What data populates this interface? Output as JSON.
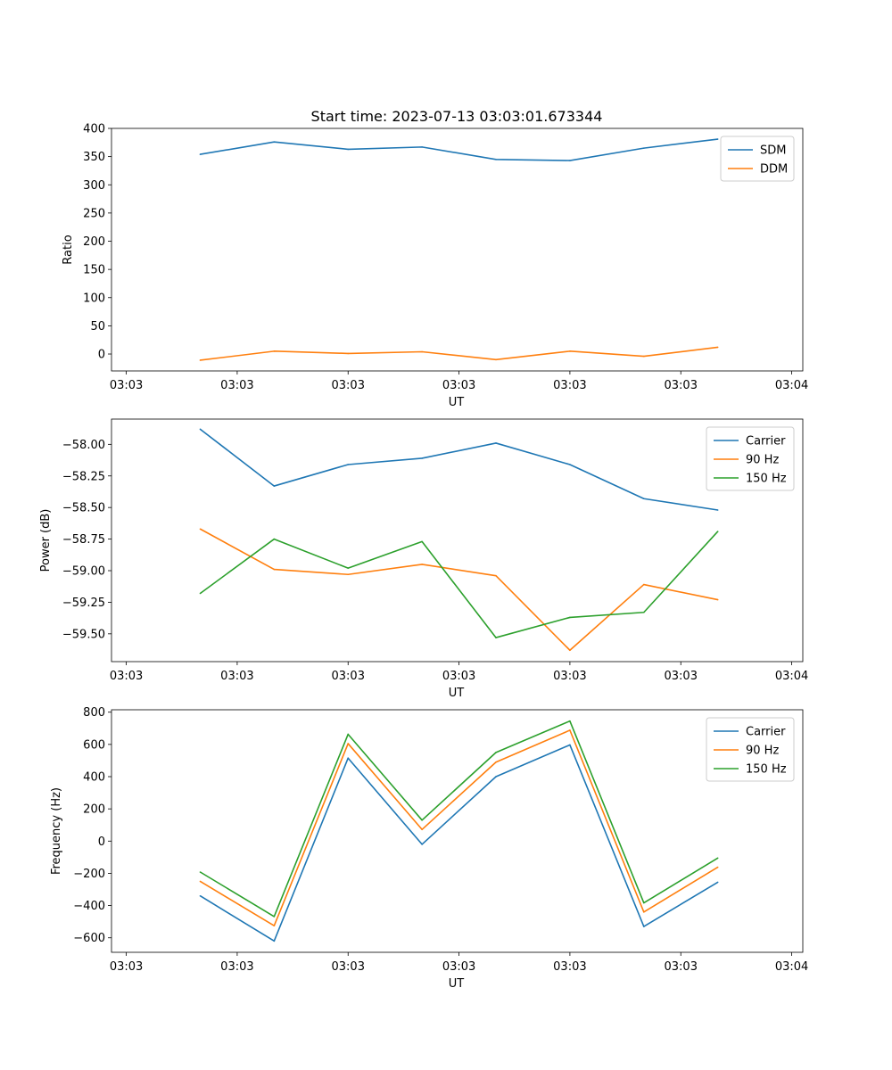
{
  "figure": {
    "title": "Start time: 2023-07-13 03:03:01.673344"
  },
  "chart_data": [
    {
      "type": "line",
      "title": "Start time: 2023-07-13 03:03:01.673344",
      "xlabel": "UT",
      "ylabel": "Ratio",
      "x": [
        1,
        2,
        3,
        4,
        5,
        6,
        7,
        8
      ],
      "xlim": [
        -0.2,
        9.15
      ],
      "xticks": [
        {
          "pos": 0,
          "label": "03:03"
        },
        {
          "pos": 1.5,
          "label": "03:03"
        },
        {
          "pos": 3,
          "label": "03:03"
        },
        {
          "pos": 4.5,
          "label": "03:03"
        },
        {
          "pos": 6,
          "label": "03:03"
        },
        {
          "pos": 7.5,
          "label": "03:03"
        },
        {
          "pos": 9,
          "label": "03:04"
        }
      ],
      "ylim": [
        -30,
        400
      ],
      "yticks": [
        {
          "pos": 0,
          "label": "0"
        },
        {
          "pos": 50,
          "label": "50"
        },
        {
          "pos": 100,
          "label": "100"
        },
        {
          "pos": 150,
          "label": "150"
        },
        {
          "pos": 200,
          "label": "200"
        },
        {
          "pos": 250,
          "label": "250"
        },
        {
          "pos": 300,
          "label": "300"
        },
        {
          "pos": 350,
          "label": "350"
        },
        {
          "pos": 400,
          "label": "400"
        }
      ],
      "legend": "top-right",
      "series": [
        {
          "name": "SDM",
          "color": "#1f77b4",
          "values": [
            354,
            376,
            363,
            367,
            345,
            343,
            365,
            381
          ]
        },
        {
          "name": "DDM",
          "color": "#ff7f0e",
          "values": [
            -11,
            5,
            1,
            4,
            -10,
            5,
            -4,
            12
          ]
        }
      ]
    },
    {
      "type": "line",
      "title": "",
      "xlabel": "UT",
      "ylabel": "Power (dB)",
      "x": [
        1,
        2,
        3,
        4,
        5,
        6,
        7,
        8
      ],
      "xlim": [
        -0.2,
        9.15
      ],
      "xticks": [
        {
          "pos": 0,
          "label": "03:03"
        },
        {
          "pos": 1.5,
          "label": "03:03"
        },
        {
          "pos": 3,
          "label": "03:03"
        },
        {
          "pos": 4.5,
          "label": "03:03"
        },
        {
          "pos": 6,
          "label": "03:03"
        },
        {
          "pos": 7.5,
          "label": "03:03"
        },
        {
          "pos": 9,
          "label": "03:04"
        }
      ],
      "ylim": [
        -59.72,
        -57.8
      ],
      "yticks": [
        {
          "pos": -58.0,
          "label": "−58.00"
        },
        {
          "pos": -58.25,
          "label": "−58.25"
        },
        {
          "pos": -58.5,
          "label": "−58.50"
        },
        {
          "pos": -58.75,
          "label": "−58.75"
        },
        {
          "pos": -59.0,
          "label": "−59.00"
        },
        {
          "pos": -59.25,
          "label": "−59.25"
        },
        {
          "pos": -59.5,
          "label": "−59.50"
        }
      ],
      "legend": "top-right",
      "series": [
        {
          "name": "Carrier",
          "color": "#1f77b4",
          "values": [
            -57.88,
            -58.33,
            -58.16,
            -58.11,
            -57.99,
            -58.16,
            -58.43,
            -58.52
          ]
        },
        {
          "name": "90 Hz",
          "color": "#ff7f0e",
          "values": [
            -58.67,
            -58.99,
            -59.03,
            -58.95,
            -59.04,
            -59.63,
            -59.11,
            -59.23
          ]
        },
        {
          "name": "150 Hz",
          "color": "#2ca02c",
          "values": [
            -59.18,
            -58.75,
            -58.98,
            -58.77,
            -59.53,
            -59.37,
            -59.33,
            -58.69
          ]
        }
      ]
    },
    {
      "type": "line",
      "title": "",
      "xlabel": "UT",
      "ylabel": "Frequency (Hz)",
      "x": [
        1,
        2,
        3,
        4,
        5,
        6,
        7,
        8
      ],
      "xlim": [
        -0.2,
        9.15
      ],
      "xticks": [
        {
          "pos": 0,
          "label": "03:03"
        },
        {
          "pos": 1.5,
          "label": "03:03"
        },
        {
          "pos": 3,
          "label": "03:03"
        },
        {
          "pos": 4.5,
          "label": "03:03"
        },
        {
          "pos": 6,
          "label": "03:03"
        },
        {
          "pos": 7.5,
          "label": "03:03"
        },
        {
          "pos": 9,
          "label": "03:04"
        }
      ],
      "ylim": [
        -690,
        815
      ],
      "yticks": [
        {
          "pos": -600,
          "label": "−600"
        },
        {
          "pos": -400,
          "label": "−400"
        },
        {
          "pos": -200,
          "label": "−200"
        },
        {
          "pos": 0,
          "label": "0"
        },
        {
          "pos": 200,
          "label": "200"
        },
        {
          "pos": 400,
          "label": "400"
        },
        {
          "pos": 600,
          "label": "600"
        },
        {
          "pos": 800,
          "label": "800"
        }
      ],
      "legend": "top-right",
      "series": [
        {
          "name": "Carrier",
          "color": "#1f77b4",
          "values": [
            -340,
            -620,
            515,
            -20,
            400,
            597,
            -530,
            -255
          ]
        },
        {
          "name": "90 Hz",
          "color": "#ff7f0e",
          "values": [
            -250,
            -525,
            605,
            72,
            490,
            688,
            -440,
            -162
          ]
        },
        {
          "name": "150 Hz",
          "color": "#2ca02c",
          "values": [
            -192,
            -468,
            663,
            130,
            550,
            745,
            -383,
            -105
          ]
        }
      ]
    }
  ]
}
